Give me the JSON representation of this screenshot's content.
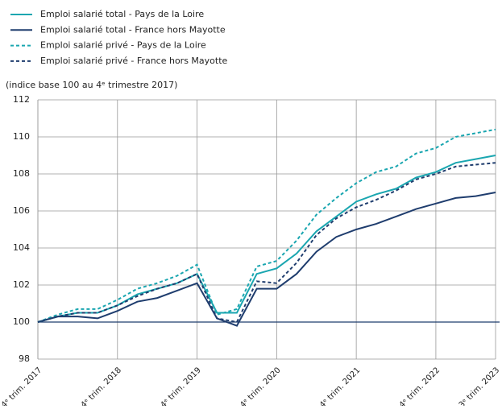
{
  "chart_data": {
    "type": "line",
    "y_label": "(indice base 100 au 4ᵉ trimestre 2017)",
    "categories": [
      "4ᵉ trim. 2017",
      null,
      null,
      null,
      "4ᵉ trim. 2018",
      null,
      null,
      null,
      "4ᵉ trim. 2019",
      null,
      null,
      null,
      "4ᵉ trim. 2020",
      null,
      null,
      null,
      "4ᵉ trim. 2021",
      null,
      null,
      null,
      "4ᵉ trim. 2022",
      null,
      null,
      "3ᵉ trim. 2023"
    ],
    "series": [
      {
        "name": "Emploi salarié total - Pays de la Loire",
        "color": "#1aa6b0",
        "dash": false,
        "values": [
          100,
          100.3,
          100.5,
          100.5,
          100.9,
          101.5,
          101.8,
          102.1,
          102.6,
          100.5,
          100.5,
          102.6,
          102.9,
          103.7,
          104.9,
          105.7,
          106.5,
          106.9,
          107.2,
          107.8,
          108.1,
          108.6,
          108.8,
          109.0
        ]
      },
      {
        "name": "Emploi salarié total - France hors Mayotte",
        "color": "#1f3d6e",
        "dash": false,
        "values": [
          100,
          100.3,
          100.3,
          100.2,
          100.6,
          101.1,
          101.3,
          101.7,
          102.1,
          100.2,
          99.8,
          101.8,
          101.8,
          102.6,
          103.8,
          104.6,
          105.0,
          105.3,
          105.7,
          106.1,
          106.4,
          106.7,
          106.8,
          107.0
        ]
      },
      {
        "name": "Emploi salarié privé - Pays de la Loire",
        "color": "#1aa6b0",
        "dash": true,
        "values": [
          100,
          100.4,
          100.7,
          100.7,
          101.2,
          101.8,
          102.1,
          102.5,
          103.1,
          100.4,
          100.7,
          103.0,
          103.3,
          104.4,
          105.8,
          106.7,
          107.5,
          108.1,
          108.4,
          109.1,
          109.4,
          110.0,
          110.2,
          110.4
        ]
      },
      {
        "name": "Emploi salarié privé - France hors Mayotte",
        "color": "#1f3d6e",
        "dash": true,
        "values": [
          100,
          100.3,
          100.5,
          100.5,
          100.9,
          101.4,
          101.8,
          102.1,
          102.6,
          100.2,
          100.0,
          102.2,
          102.1,
          103.2,
          104.7,
          105.6,
          106.2,
          106.6,
          107.1,
          107.7,
          108.0,
          108.4,
          108.5,
          108.6
        ]
      }
    ],
    "ylim": [
      98,
      112
    ],
    "yticks": [
      98,
      100,
      102,
      104,
      106,
      108,
      110,
      112
    ],
    "hline": 100,
    "grid": true,
    "legend": "top-left"
  }
}
